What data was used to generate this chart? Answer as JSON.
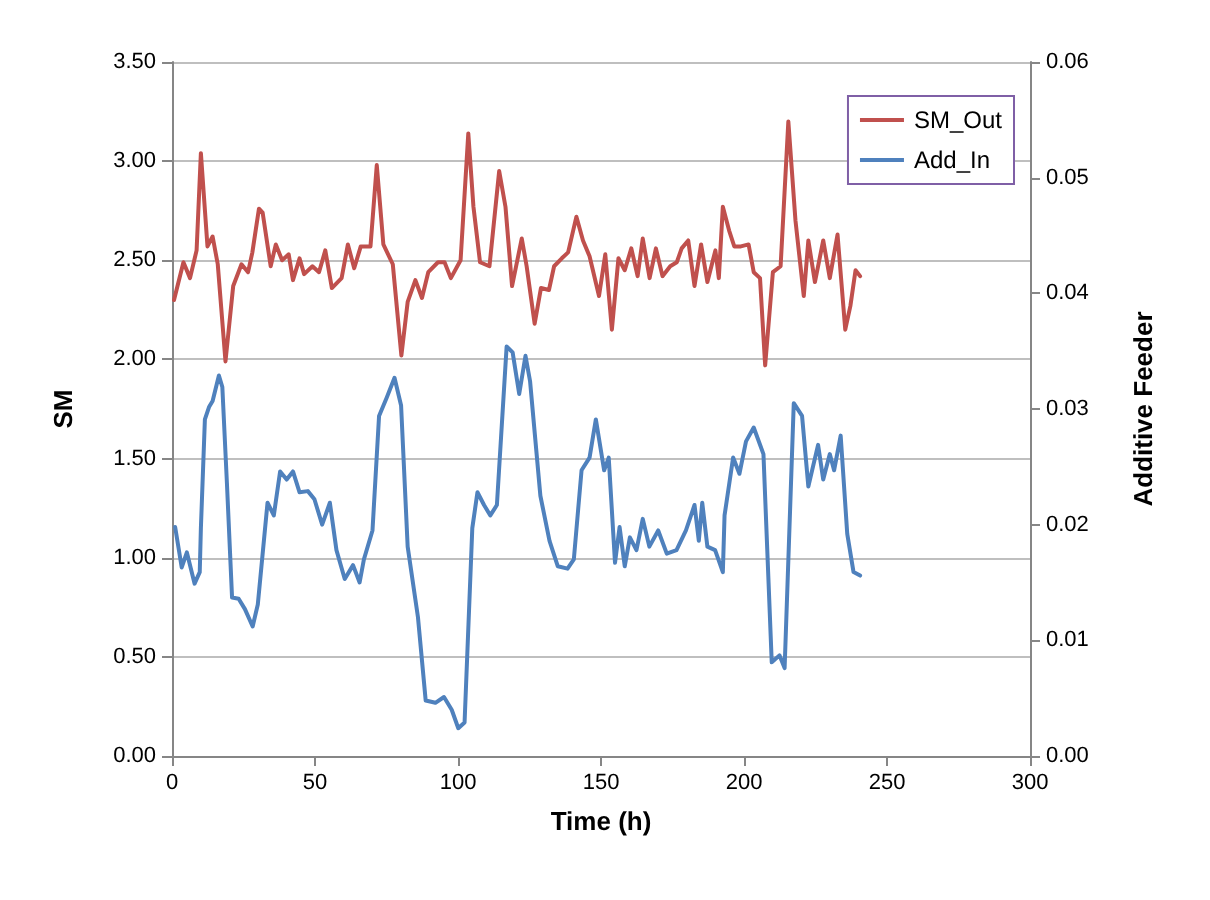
{
  "chart_data": {
    "type": "line",
    "xlabel": "Time (h)",
    "ylabel": "SM",
    "y2label": "Additive Feeder",
    "xlim": [
      0,
      300
    ],
    "xticks": [
      0,
      50,
      100,
      150,
      200,
      250,
      300
    ],
    "ylim": [
      0,
      3.5
    ],
    "yticks": [
      {
        "value": 0,
        "label": "0.00"
      },
      {
        "value": 0.5,
        "label": "0.50"
      },
      {
        "value": 1,
        "label": "1.00"
      },
      {
        "value": 1.5,
        "label": "1.50"
      },
      {
        "value": 2,
        "label": "2.00"
      },
      {
        "value": 2.5,
        "label": "2.50"
      },
      {
        "value": 3,
        "label": "3.00"
      },
      {
        "value": 3.5,
        "label": "3.50"
      }
    ],
    "y2lim": [
      0,
      0.06
    ],
    "y2ticks": [
      {
        "value": 0,
        "label": "0.00"
      },
      {
        "value": 0.01,
        "label": "0.01"
      },
      {
        "value": 0.02,
        "label": "0.02"
      },
      {
        "value": 0.03,
        "label": "0.03"
      },
      {
        "value": 0.04,
        "label": "0.04"
      },
      {
        "value": 0.05,
        "label": "0.05"
      },
      {
        "value": 0.06,
        "label": "0.06"
      }
    ],
    "grid": "y",
    "legend": "top right",
    "marker": "none",
    "line_style": "solid",
    "series": [
      {
        "name": "SM_Out",
        "color": "#c0504d",
        "x": [
          0.7,
          4,
          6.3,
          8.6,
          10.1,
          12.4,
          14.2,
          16,
          18.7,
          21.4,
          24.3,
          26.6,
          28.1,
          30.4,
          31.7,
          34.5,
          36.3,
          38.5,
          40.8,
          42.3,
          44.6,
          46.2,
          49.1,
          51.4,
          53.6,
          55.9,
          59.3,
          61.5,
          63.7,
          66,
          69.4,
          71.6,
          73.9,
          77.2,
          80.2,
          82.4,
          85.1,
          87.4,
          89.6,
          93,
          95.3,
          97.5,
          100.9,
          103.6,
          105.4,
          107.7,
          111,
          114.4,
          116.6,
          118.9,
          122.3,
          124,
          126.8,
          129,
          131.8,
          133.6,
          136.3,
          138.5,
          141.4,
          143.7,
          146,
          149.3,
          151.5,
          153.8,
          156.1,
          158.3,
          160.6,
          162.8,
          164.6,
          167,
          169.2,
          171.5,
          174.2,
          176.5,
          178.2,
          180.5,
          182.7,
          185,
          187.2,
          190,
          191.2,
          192.6,
          194.8,
          196.6,
          198.9,
          201.6,
          203.4,
          205.6,
          207.4,
          210.1,
          212.8,
          215.5,
          218,
          220.9,
          222.5,
          224.8,
          227.7,
          230,
          232.7,
          235.4,
          237.2,
          239,
          240.6
        ],
        "values": [
          2.3,
          2.49,
          2.41,
          2.55,
          3.04,
          2.57,
          2.62,
          2.48,
          1.99,
          2.37,
          2.48,
          2.44,
          2.54,
          2.76,
          2.74,
          2.47,
          2.58,
          2.5,
          2.53,
          2.4,
          2.51,
          2.43,
          2.47,
          2.44,
          2.55,
          2.36,
          2.41,
          2.58,
          2.46,
          2.57,
          2.57,
          2.98,
          2.58,
          2.48,
          2.02,
          2.29,
          2.4,
          2.31,
          2.44,
          2.49,
          2.49,
          2.41,
          2.5,
          3.14,
          2.77,
          2.49,
          2.47,
          2.95,
          2.77,
          2.37,
          2.61,
          2.47,
          2.18,
          2.36,
          2.35,
          2.47,
          2.51,
          2.54,
          2.72,
          2.6,
          2.52,
          2.32,
          2.53,
          2.15,
          2.51,
          2.45,
          2.56,
          2.42,
          2.61,
          2.41,
          2.56,
          2.42,
          2.47,
          2.49,
          2.56,
          2.6,
          2.37,
          2.58,
          2.39,
          2.55,
          2.41,
          2.77,
          2.65,
          2.57,
          2.57,
          2.58,
          2.44,
          2.41,
          1.97,
          2.44,
          2.47,
          3.2,
          2.7,
          2.32,
          2.6,
          2.39,
          2.6,
          2.41,
          2.63,
          2.15,
          2.27,
          2.45,
          2.42
        ]
      },
      {
        "name": "Add_In",
        "color": "#4f81bd",
        "axis": "y2",
        "x": [
          1.1,
          3.4,
          5.2,
          7.9,
          9.7,
          10.1,
          11.5,
          13,
          14.2,
          16.4,
          17.6,
          19.2,
          21,
          23.3,
          25.5,
          28.2,
          30,
          33.4,
          35.6,
          37.8,
          40.1,
          42.3,
          44.6,
          47.5,
          49.8,
          52.5,
          55.2,
          57.5,
          60.4,
          63.3,
          65.6,
          67.1,
          70.1,
          72.4,
          75.1,
          77.8,
          80.1,
          82.4,
          86,
          88.7,
          92.1,
          95.1,
          97.8,
          100.1,
          102.3,
          105,
          106.8,
          109.1,
          111.3,
          113.6,
          117,
          119.1,
          121.4,
          123.6,
          125.2,
          128.8,
          132,
          134.9,
          138.3,
          140.5,
          143.2,
          146,
          148.2,
          151.1,
          152.7,
          154.9,
          156.5,
          158.3,
          160.1,
          162.4,
          164.6,
          166.9,
          170,
          173,
          176.4,
          179.7,
          182.7,
          184.2,
          185.4,
          187.2,
          189.9,
          192.6,
          193.2,
          196.2,
          198.4,
          200.7,
          203.4,
          206.8,
          209.7,
          212.4,
          214.2,
          217.4,
          220.3,
          222.5,
          225.9,
          227.7,
          230,
          231.5,
          233.8,
          236.1,
          238.3,
          240.6
        ],
        "values": [
          0.0198,
          0.0163,
          0.0176,
          0.0149,
          0.0159,
          0.0197,
          0.0291,
          0.0302,
          0.0307,
          0.0329,
          0.0319,
          0.0236,
          0.0137,
          0.0136,
          0.0127,
          0.0112,
          0.0131,
          0.0219,
          0.0208,
          0.0246,
          0.0239,
          0.0246,
          0.0228,
          0.0229,
          0.0222,
          0.02,
          0.0219,
          0.0178,
          0.0153,
          0.0165,
          0.015,
          0.017,
          0.0195,
          0.0294,
          0.031,
          0.0327,
          0.0303,
          0.0181,
          0.012,
          0.0048,
          0.0046,
          0.0051,
          0.004,
          0.0024,
          0.0029,
          0.0197,
          0.0228,
          0.0217,
          0.0208,
          0.0217,
          0.0354,
          0.0349,
          0.0313,
          0.0346,
          0.0324,
          0.0225,
          0.0186,
          0.0164,
          0.0162,
          0.017,
          0.0247,
          0.0258,
          0.0291,
          0.0247,
          0.0258,
          0.0167,
          0.0198,
          0.0164,
          0.0189,
          0.0178,
          0.0205,
          0.0181,
          0.0195,
          0.0175,
          0.0178,
          0.0195,
          0.0217,
          0.0186,
          0.0219,
          0.0181,
          0.0178,
          0.0159,
          0.0208,
          0.0258,
          0.0244,
          0.0272,
          0.0284,
          0.0261,
          0.0081,
          0.0087,
          0.0076,
          0.0305,
          0.0294,
          0.0233,
          0.0269,
          0.0239,
          0.0261,
          0.0247,
          0.0277,
          0.0192,
          0.0159,
          0.0156
        ]
      }
    ]
  }
}
